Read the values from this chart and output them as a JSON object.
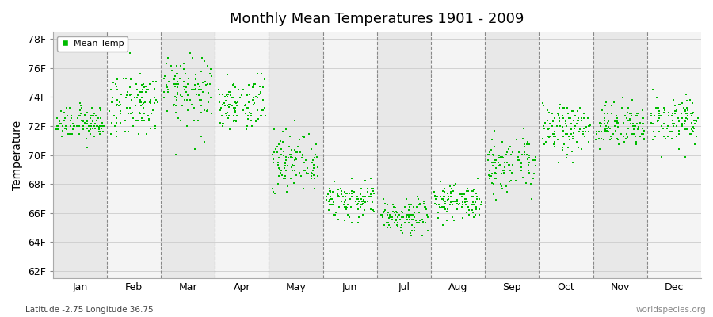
{
  "title": "Monthly Mean Temperatures 1901 - 2009",
  "ylabel": "Temperature",
  "xlabel_months": [
    "Jan",
    "Feb",
    "Mar",
    "Apr",
    "May",
    "Jun",
    "Jul",
    "Aug",
    "Sep",
    "Oct",
    "Nov",
    "Dec"
  ],
  "yticks": [
    62,
    64,
    66,
    68,
    70,
    72,
    74,
    76,
    78
  ],
  "ytick_labels": [
    "62F",
    "64F",
    "66F",
    "68F",
    "70F",
    "72F",
    "74F",
    "76F",
    "78F"
  ],
  "ylim": [
    61.5,
    78.5
  ],
  "xlim": [
    0,
    12
  ],
  "footer_left": "Latitude -2.75 Longitude 36.75",
  "footer_right": "worldspecies.org",
  "legend_label": "Mean Temp",
  "marker_color": "#00bb00",
  "background_color": "#ffffff",
  "plot_bg_even": "#e8e8e8",
  "plot_bg_odd": "#f4f4f4",
  "n_years": 109,
  "monthly_means": [
    72.2,
    73.5,
    74.5,
    73.5,
    69.5,
    66.8,
    65.8,
    66.8,
    69.3,
    71.8,
    72.0,
    72.3
  ],
  "monthly_stds": [
    0.55,
    1.1,
    1.2,
    0.9,
    0.85,
    0.65,
    0.6,
    0.65,
    0.85,
    0.9,
    0.8,
    0.85
  ],
  "quantize_factor": 0.18
}
